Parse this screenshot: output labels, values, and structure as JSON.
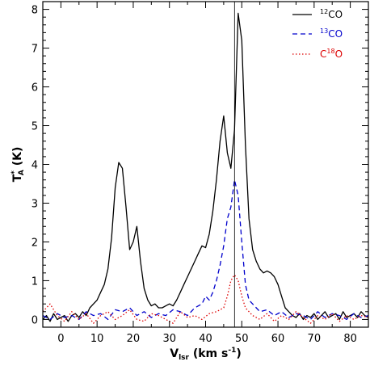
{
  "chart_data": {
    "type": "line",
    "title": "",
    "xlabel": {
      "main": "V",
      "sub": "lsr",
      "rest": " (km s",
      "sup": "-1",
      "close": ")"
    },
    "ylabel": {
      "main": "T",
      "sup": "*",
      "sub": "A",
      "rest": " (K)"
    },
    "xlim": [
      -5,
      85
    ],
    "ylim": [
      -0.2,
      8.2
    ],
    "x_ticks": [
      0,
      10,
      20,
      30,
      40,
      50,
      60,
      70,
      80
    ],
    "y_ticks": [
      0,
      1,
      2,
      3,
      4,
      5,
      6,
      7,
      8
    ],
    "vline": 48,
    "grid": false,
    "legend_position": "top-right",
    "series": [
      {
        "name": "12CO",
        "legend": {
          "sup": "12",
          "base": "CO"
        },
        "color": "#000000",
        "dash": "",
        "x": [
          -5,
          -4,
          -3,
          -2,
          -1,
          0,
          1,
          2,
          3,
          4,
          5,
          6,
          7,
          8,
          9,
          10,
          11,
          12,
          13,
          14,
          15,
          16,
          17,
          18,
          19,
          20,
          21,
          22,
          23,
          24,
          25,
          26,
          27,
          28,
          29,
          30,
          31,
          32,
          33,
          34,
          35,
          36,
          37,
          38,
          39,
          40,
          41,
          42,
          43,
          44,
          45,
          46,
          47,
          48,
          49,
          50,
          51,
          52,
          53,
          54,
          55,
          56,
          57,
          58,
          59,
          60,
          61,
          62,
          63,
          64,
          65,
          66,
          67,
          68,
          69,
          70,
          71,
          72,
          73,
          74,
          75,
          76,
          77,
          78,
          79,
          80,
          81,
          82,
          83,
          84,
          85
        ],
        "y": [
          0.0,
          0.1,
          -0.05,
          0.15,
          0.0,
          0.05,
          0.1,
          -0.05,
          0.1,
          0.15,
          0.05,
          0.2,
          0.1,
          0.3,
          0.4,
          0.5,
          0.7,
          0.9,
          1.3,
          2.1,
          3.4,
          4.05,
          3.9,
          2.9,
          1.8,
          2.0,
          2.4,
          1.5,
          0.8,
          0.5,
          0.35,
          0.4,
          0.3,
          0.3,
          0.35,
          0.4,
          0.35,
          0.5,
          0.7,
          0.9,
          1.1,
          1.3,
          1.5,
          1.7,
          1.9,
          1.85,
          2.2,
          2.8,
          3.6,
          4.6,
          5.25,
          4.3,
          3.9,
          4.9,
          7.9,
          7.2,
          4.5,
          2.6,
          1.8,
          1.5,
          1.3,
          1.2,
          1.25,
          1.2,
          1.1,
          0.9,
          0.6,
          0.3,
          0.2,
          0.1,
          0.05,
          0.15,
          0.0,
          0.1,
          0.05,
          0.15,
          0.0,
          0.1,
          0.2,
          0.05,
          0.1,
          0.15,
          0.0,
          0.2,
          0.05,
          0.1,
          0.15,
          0.05,
          0.2,
          0.1,
          0.05
        ]
      },
      {
        "name": "13CO",
        "legend": {
          "sup": "13",
          "base": "CO"
        },
        "color": "#0000cc",
        "dash": "6,4",
        "x": [
          -5,
          -3,
          -1,
          1,
          3,
          5,
          7,
          9,
          11,
          13,
          15,
          17,
          19,
          21,
          23,
          25,
          27,
          29,
          31,
          33,
          35,
          37,
          39,
          40,
          41,
          42,
          43,
          44,
          45,
          46,
          47,
          48,
          49,
          50,
          51,
          52,
          53,
          54,
          55,
          57,
          59,
          61,
          63,
          65,
          67,
          69,
          71,
          73,
          75,
          77,
          79,
          81,
          83,
          85
        ],
        "y": [
          0.1,
          0.0,
          0.15,
          0.05,
          0.1,
          0.0,
          0.2,
          0.1,
          0.15,
          0.0,
          0.25,
          0.2,
          0.3,
          0.1,
          0.2,
          0.05,
          0.15,
          0.1,
          0.25,
          0.2,
          0.1,
          0.3,
          0.4,
          0.6,
          0.5,
          0.7,
          1.0,
          1.4,
          1.9,
          2.6,
          2.9,
          3.6,
          3.2,
          2.0,
          0.9,
          0.5,
          0.4,
          0.3,
          0.2,
          0.25,
          0.1,
          0.2,
          0.05,
          0.15,
          0.1,
          0.0,
          0.2,
          0.05,
          0.15,
          0.1,
          0.0,
          0.15,
          0.05,
          0.1
        ]
      },
      {
        "name": "C18O",
        "legend": {
          "base1": "C",
          "sup": "18",
          "base2": "O"
        },
        "color": "#dd0000",
        "dash": "1.5,2.5",
        "x": [
          -5,
          -3,
          -1,
          1,
          3,
          5,
          7,
          9,
          11,
          13,
          15,
          17,
          19,
          21,
          23,
          25,
          27,
          29,
          31,
          33,
          35,
          37,
          39,
          41,
          43,
          45,
          46,
          47,
          48,
          49,
          50,
          51,
          52,
          53,
          55,
          57,
          59,
          61,
          63,
          65,
          67,
          69,
          71,
          73,
          75,
          77,
          79,
          81,
          83,
          85
        ],
        "y": [
          0.2,
          0.4,
          0.1,
          -0.05,
          0.2,
          0.0,
          0.15,
          -0.1,
          0.1,
          0.2,
          0.0,
          0.1,
          0.25,
          0.0,
          -0.05,
          0.15,
          0.1,
          0.0,
          -0.1,
          0.2,
          0.05,
          0.1,
          0.0,
          0.15,
          0.2,
          0.3,
          0.6,
          1.0,
          1.15,
          1.0,
          0.6,
          0.3,
          0.2,
          0.1,
          0.0,
          0.15,
          -0.05,
          0.1,
          0.0,
          0.2,
          0.05,
          -0.1,
          0.1,
          0.0,
          0.15,
          -0.05,
          0.1,
          0.0,
          0.1,
          0.05
        ]
      }
    ]
  }
}
